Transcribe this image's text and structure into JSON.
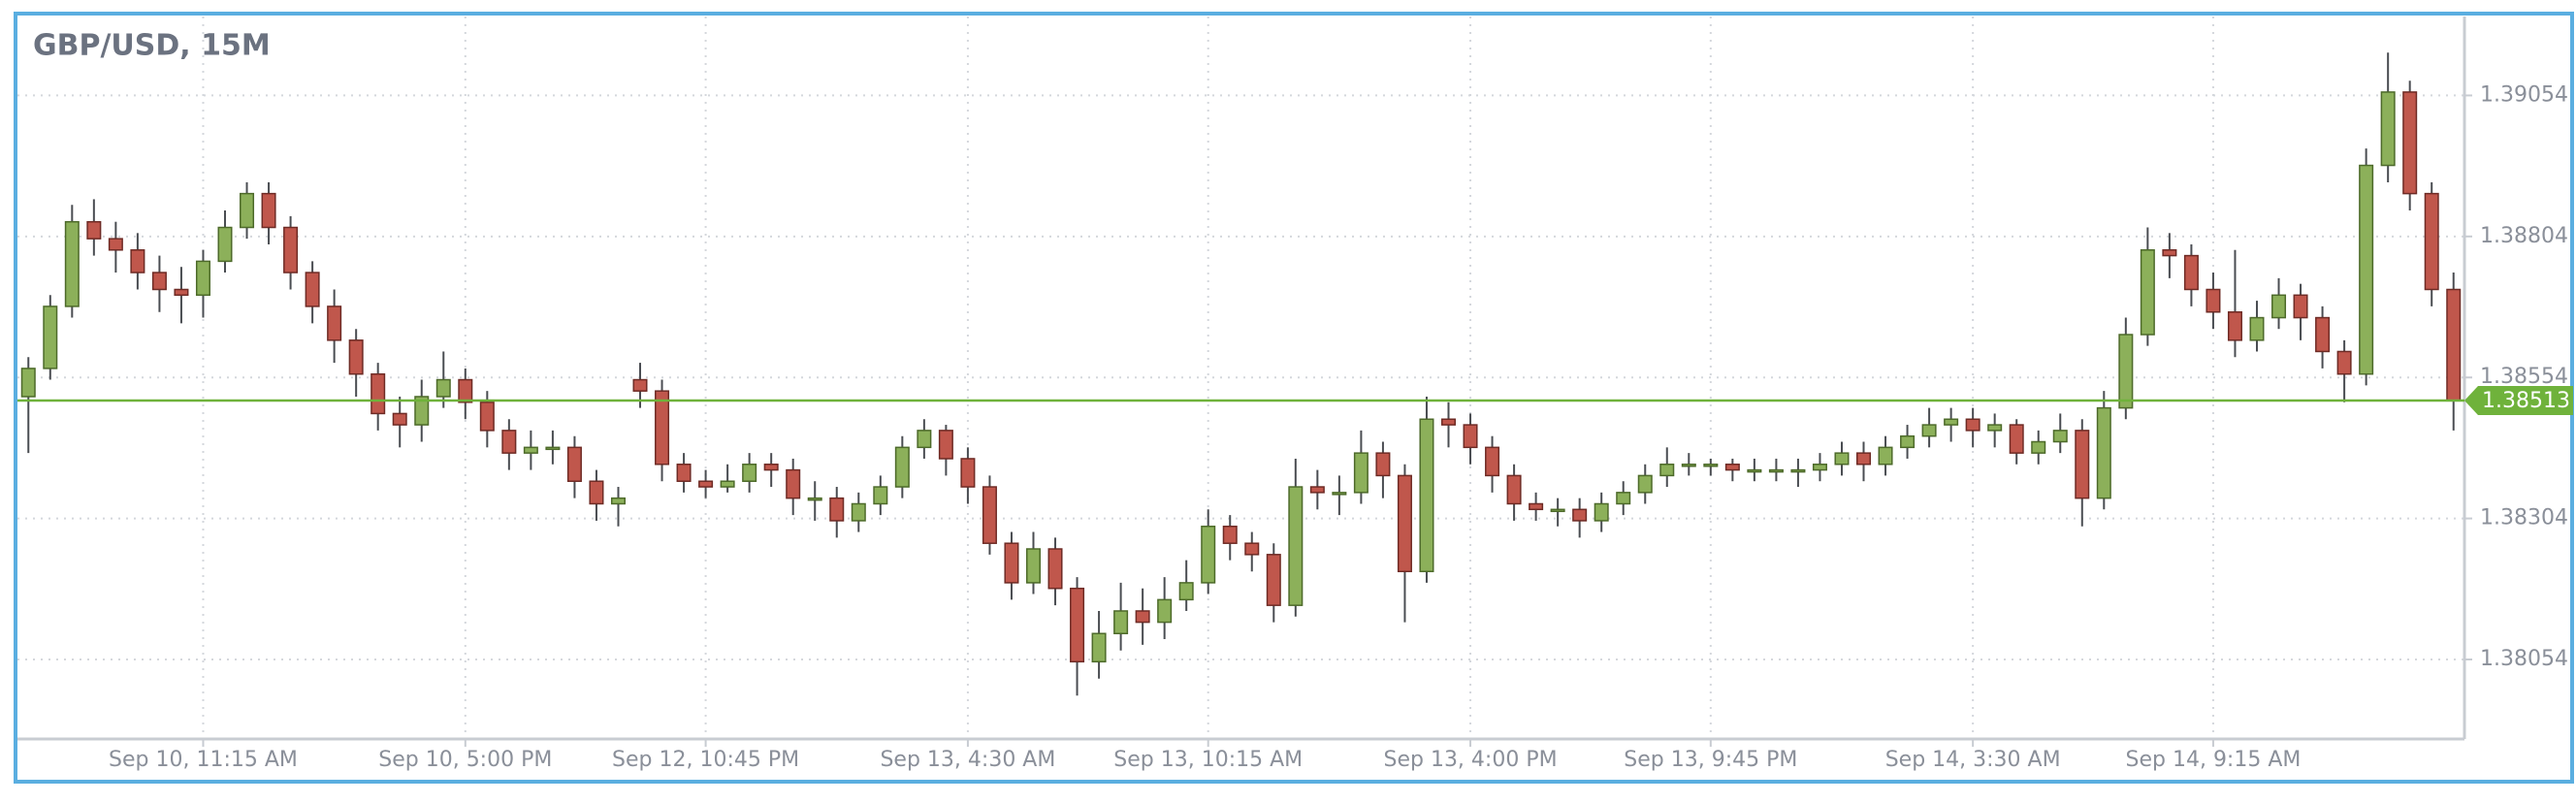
{
  "chart_data": {
    "type": "candlestick",
    "title": "GBP/USD, 15M",
    "categories": [
      null,
      null,
      null,
      null,
      null,
      null,
      null,
      null,
      "Sep 10, 11:15 AM",
      null,
      null,
      null,
      null,
      null,
      null,
      null,
      null,
      null,
      null,
      null,
      "Sep 10, 5:00 PM",
      null,
      null,
      null,
      null,
      null,
      null,
      null,
      null,
      null,
      null,
      "Sep 12, 10:45 PM",
      null,
      null,
      null,
      null,
      null,
      null,
      null,
      null,
      null,
      null,
      null,
      "Sep 13, 4:30 AM",
      null,
      null,
      null,
      null,
      null,
      null,
      null,
      null,
      null,
      null,
      "Sep 13, 10:15 AM",
      null,
      null,
      null,
      null,
      null,
      null,
      null,
      null,
      null,
      null,
      null,
      "Sep 13, 4:00 PM",
      null,
      null,
      null,
      null,
      null,
      null,
      null,
      null,
      null,
      null,
      "Sep 13, 9:45 PM",
      null,
      null,
      null,
      null,
      null,
      null,
      null,
      null,
      null,
      null,
      null,
      "Sep 14, 3:30 AM",
      null,
      null,
      null,
      null,
      null,
      null,
      null,
      null,
      null,
      null,
      "Sep 14, 9:15 AM",
      null,
      null,
      null,
      null,
      null,
      null,
      null,
      null,
      null,
      null,
      null
    ],
    "open": [
      1.3852,
      1.3857,
      1.3868,
      1.3883,
      1.388,
      1.3878,
      1.3874,
      1.3871,
      1.387,
      1.3876,
      1.3882,
      1.3888,
      1.3882,
      1.3874,
      1.3868,
      1.3862,
      1.3856,
      1.3849,
      1.3847,
      1.3852,
      1.3855,
      1.3851,
      1.3846,
      1.3842,
      1.3843,
      1.3843,
      1.3837,
      1.3833,
      1.3855,
      1.3853,
      1.384,
      1.3837,
      1.3836,
      1.3837,
      1.384,
      1.3839,
      1.3834,
      1.3834,
      1.383,
      1.3833,
      1.3836,
      1.3843,
      1.3846,
      1.3841,
      1.3836,
      1.3826,
      1.3819,
      1.3825,
      1.3818,
      1.3805,
      1.381,
      1.3814,
      1.3812,
      1.3816,
      1.3819,
      1.3829,
      1.3826,
      1.3824,
      1.3815,
      1.3836,
      1.3835,
      1.3835,
      1.3842,
      1.3838,
      1.3821,
      1.3848,
      1.3847,
      1.3843,
      1.3838,
      1.3833,
      1.3832,
      1.3832,
      1.383,
      1.3833,
      1.3835,
      1.3838,
      1.384,
      1.384,
      1.384,
      1.3839,
      1.3839,
      1.3839,
      1.3839,
      1.384,
      1.3842,
      1.384,
      1.3843,
      1.3845,
      1.3847,
      1.3848,
      1.3846,
      1.3847,
      1.3842,
      1.3844,
      1.3846,
      1.3834,
      1.385,
      1.3863,
      1.3878,
      1.3877,
      1.3871,
      1.3867,
      1.3862,
      1.3866,
      1.387,
      1.3866,
      1.386,
      1.3856,
      1.3893,
      1.3906,
      1.3888,
      1.3871
    ],
    "high": [
      1.3859,
      1.387,
      1.3886,
      1.3887,
      1.3883,
      1.3881,
      1.3877,
      1.3875,
      1.3878,
      1.3885,
      1.389,
      1.389,
      1.3884,
      1.3876,
      1.3871,
      1.3864,
      1.3858,
      1.3852,
      1.3855,
      1.386,
      1.3857,
      1.3853,
      1.3848,
      1.3846,
      1.3846,
      1.3845,
      1.3839,
      1.3836,
      1.3858,
      1.3855,
      1.3842,
      1.3839,
      1.384,
      1.3842,
      1.3842,
      1.3841,
      1.3837,
      1.3836,
      1.3835,
      1.3838,
      1.3845,
      1.3848,
      1.3847,
      1.3843,
      1.3838,
      1.3828,
      1.3828,
      1.3827,
      1.382,
      1.3814,
      1.3819,
      1.3818,
      1.382,
      1.3823,
      1.3832,
      1.3831,
      1.3828,
      1.3826,
      1.3841,
      1.3839,
      1.3838,
      1.3846,
      1.3844,
      1.384,
      1.3852,
      1.3851,
      1.3849,
      1.3845,
      1.384,
      1.3835,
      1.3834,
      1.3834,
      1.3835,
      1.3837,
      1.384,
      1.3843,
      1.3842,
      1.3841,
      1.3841,
      1.3841,
      1.3841,
      1.3841,
      1.3842,
      1.3844,
      1.3844,
      1.3845,
      1.3847,
      1.385,
      1.385,
      1.385,
      1.3849,
      1.3848,
      1.3846,
      1.3849,
      1.3848,
      1.3853,
      1.3866,
      1.3882,
      1.3881,
      1.3879,
      1.3874,
      1.3878,
      1.3869,
      1.3873,
      1.3872,
      1.3868,
      1.3862,
      1.3896,
      1.3913,
      1.3908,
      1.389,
      1.3874
    ],
    "low": [
      1.3842,
      1.3855,
      1.3866,
      1.3877,
      1.3874,
      1.3871,
      1.3867,
      1.3865,
      1.3866,
      1.3874,
      1.388,
      1.3879,
      1.3871,
      1.3865,
      1.3858,
      1.3852,
      1.3846,
      1.3843,
      1.3844,
      1.385,
      1.3848,
      1.3843,
      1.3839,
      1.3839,
      1.384,
      1.3834,
      1.383,
      1.3829,
      1.385,
      1.3837,
      1.3835,
      1.3834,
      1.3835,
      1.3835,
      1.3836,
      1.3831,
      1.383,
      1.3827,
      1.3828,
      1.3831,
      1.3834,
      1.3841,
      1.3838,
      1.3833,
      1.3824,
      1.3816,
      1.3817,
      1.3815,
      1.3799,
      1.3802,
      1.3807,
      1.3808,
      1.3809,
      1.3814,
      1.3817,
      1.3823,
      1.3821,
      1.3812,
      1.3813,
      1.3832,
      1.3831,
      1.3833,
      1.3834,
      1.3812,
      1.3819,
      1.3843,
      1.384,
      1.3835,
      1.383,
      1.383,
      1.3829,
      1.3827,
      1.3828,
      1.3831,
      1.3833,
      1.3836,
      1.3838,
      1.3838,
      1.3837,
      1.3837,
      1.3837,
      1.3836,
      1.3837,
      1.3838,
      1.3837,
      1.3838,
      1.3841,
      1.3843,
      1.3844,
      1.3843,
      1.3843,
      1.384,
      1.384,
      1.3842,
      1.3829,
      1.3832,
      1.3848,
      1.3861,
      1.3873,
      1.3868,
      1.3864,
      1.3859,
      1.386,
      1.3864,
      1.3862,
      1.3857,
      1.3851,
      1.3854,
      1.389,
      1.3885,
      1.3868,
      1.3846
    ],
    "close": [
      1.3857,
      1.3868,
      1.3883,
      1.388,
      1.3878,
      1.3874,
      1.3871,
      1.387,
      1.3876,
      1.3882,
      1.3888,
      1.3882,
      1.3874,
      1.3868,
      1.3862,
      1.3856,
      1.3849,
      1.3847,
      1.3852,
      1.3855,
      1.3851,
      1.3846,
      1.3842,
      1.3843,
      1.3843,
      1.3837,
      1.3833,
      1.3834,
      1.3853,
      1.384,
      1.3837,
      1.3836,
      1.3837,
      1.384,
      1.3839,
      1.3834,
      1.3834,
      1.383,
      1.3833,
      1.3836,
      1.3843,
      1.3846,
      1.3841,
      1.3836,
      1.3826,
      1.3819,
      1.3825,
      1.3818,
      1.3805,
      1.381,
      1.3814,
      1.3812,
      1.3816,
      1.3819,
      1.3829,
      1.3826,
      1.3824,
      1.3815,
      1.3836,
      1.3835,
      1.3835,
      1.3842,
      1.3838,
      1.3821,
      1.3848,
      1.3847,
      1.3843,
      1.3838,
      1.3833,
      1.3832,
      1.3832,
      1.383,
      1.3833,
      1.3835,
      1.3838,
      1.384,
      1.384,
      1.384,
      1.3839,
      1.3839,
      1.3839,
      1.3839,
      1.384,
      1.3842,
      1.384,
      1.3843,
      1.3845,
      1.3847,
      1.3848,
      1.3846,
      1.3847,
      1.3842,
      1.3844,
      1.3846,
      1.3834,
      1.385,
      1.3863,
      1.3878,
      1.3877,
      1.3871,
      1.3867,
      1.3862,
      1.3866,
      1.387,
      1.3866,
      1.386,
      1.3856,
      1.3893,
      1.3906,
      1.3888,
      1.3871,
      1.38513
    ],
    "current_price": 1.38513,
    "ylim": [
      1.37913,
      1.39194
    ],
    "yticks": [
      1.38054,
      1.38304,
      1.38554,
      1.38804,
      1.39054
    ],
    "grid": true,
    "up_color": "#8cb05a",
    "down_color": "#c0574c",
    "price_line_color": "#6fb23b"
  }
}
